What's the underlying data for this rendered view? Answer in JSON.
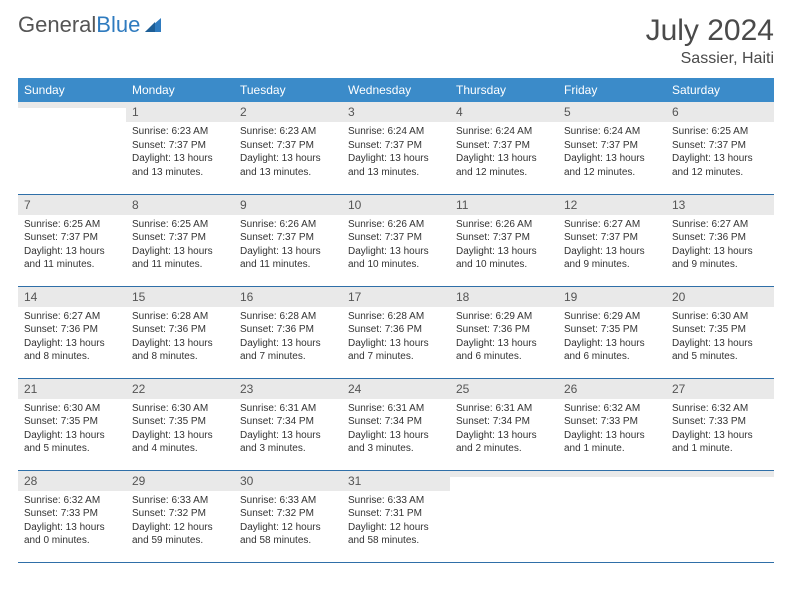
{
  "brand": {
    "part1": "General",
    "part2": "Blue"
  },
  "title": "July 2024",
  "location": "Sassier, Haiti",
  "colors": {
    "header_bg": "#3b8bc9",
    "header_text": "#ffffff",
    "row_divider": "#2f6fa8",
    "daynum_bg": "#e9e9e9",
    "brand_blue": "#2f7bbf",
    "text": "#333333"
  },
  "day_headers": [
    "Sunday",
    "Monday",
    "Tuesday",
    "Wednesday",
    "Thursday",
    "Friday",
    "Saturday"
  ],
  "weeks": [
    [
      {
        "n": "",
        "sr": "",
        "ss": "",
        "dl": ""
      },
      {
        "n": "1",
        "sr": "Sunrise: 6:23 AM",
        "ss": "Sunset: 7:37 PM",
        "dl": "Daylight: 13 hours and 13 minutes."
      },
      {
        "n": "2",
        "sr": "Sunrise: 6:23 AM",
        "ss": "Sunset: 7:37 PM",
        "dl": "Daylight: 13 hours and 13 minutes."
      },
      {
        "n": "3",
        "sr": "Sunrise: 6:24 AM",
        "ss": "Sunset: 7:37 PM",
        "dl": "Daylight: 13 hours and 13 minutes."
      },
      {
        "n": "4",
        "sr": "Sunrise: 6:24 AM",
        "ss": "Sunset: 7:37 PM",
        "dl": "Daylight: 13 hours and 12 minutes."
      },
      {
        "n": "5",
        "sr": "Sunrise: 6:24 AM",
        "ss": "Sunset: 7:37 PM",
        "dl": "Daylight: 13 hours and 12 minutes."
      },
      {
        "n": "6",
        "sr": "Sunrise: 6:25 AM",
        "ss": "Sunset: 7:37 PM",
        "dl": "Daylight: 13 hours and 12 minutes."
      }
    ],
    [
      {
        "n": "7",
        "sr": "Sunrise: 6:25 AM",
        "ss": "Sunset: 7:37 PM",
        "dl": "Daylight: 13 hours and 11 minutes."
      },
      {
        "n": "8",
        "sr": "Sunrise: 6:25 AM",
        "ss": "Sunset: 7:37 PM",
        "dl": "Daylight: 13 hours and 11 minutes."
      },
      {
        "n": "9",
        "sr": "Sunrise: 6:26 AM",
        "ss": "Sunset: 7:37 PM",
        "dl": "Daylight: 13 hours and 11 minutes."
      },
      {
        "n": "10",
        "sr": "Sunrise: 6:26 AM",
        "ss": "Sunset: 7:37 PM",
        "dl": "Daylight: 13 hours and 10 minutes."
      },
      {
        "n": "11",
        "sr": "Sunrise: 6:26 AM",
        "ss": "Sunset: 7:37 PM",
        "dl": "Daylight: 13 hours and 10 minutes."
      },
      {
        "n": "12",
        "sr": "Sunrise: 6:27 AM",
        "ss": "Sunset: 7:37 PM",
        "dl": "Daylight: 13 hours and 9 minutes."
      },
      {
        "n": "13",
        "sr": "Sunrise: 6:27 AM",
        "ss": "Sunset: 7:36 PM",
        "dl": "Daylight: 13 hours and 9 minutes."
      }
    ],
    [
      {
        "n": "14",
        "sr": "Sunrise: 6:27 AM",
        "ss": "Sunset: 7:36 PM",
        "dl": "Daylight: 13 hours and 8 minutes."
      },
      {
        "n": "15",
        "sr": "Sunrise: 6:28 AM",
        "ss": "Sunset: 7:36 PM",
        "dl": "Daylight: 13 hours and 8 minutes."
      },
      {
        "n": "16",
        "sr": "Sunrise: 6:28 AM",
        "ss": "Sunset: 7:36 PM",
        "dl": "Daylight: 13 hours and 7 minutes."
      },
      {
        "n": "17",
        "sr": "Sunrise: 6:28 AM",
        "ss": "Sunset: 7:36 PM",
        "dl": "Daylight: 13 hours and 7 minutes."
      },
      {
        "n": "18",
        "sr": "Sunrise: 6:29 AM",
        "ss": "Sunset: 7:36 PM",
        "dl": "Daylight: 13 hours and 6 minutes."
      },
      {
        "n": "19",
        "sr": "Sunrise: 6:29 AM",
        "ss": "Sunset: 7:35 PM",
        "dl": "Daylight: 13 hours and 6 minutes."
      },
      {
        "n": "20",
        "sr": "Sunrise: 6:30 AM",
        "ss": "Sunset: 7:35 PM",
        "dl": "Daylight: 13 hours and 5 minutes."
      }
    ],
    [
      {
        "n": "21",
        "sr": "Sunrise: 6:30 AM",
        "ss": "Sunset: 7:35 PM",
        "dl": "Daylight: 13 hours and 5 minutes."
      },
      {
        "n": "22",
        "sr": "Sunrise: 6:30 AM",
        "ss": "Sunset: 7:35 PM",
        "dl": "Daylight: 13 hours and 4 minutes."
      },
      {
        "n": "23",
        "sr": "Sunrise: 6:31 AM",
        "ss": "Sunset: 7:34 PM",
        "dl": "Daylight: 13 hours and 3 minutes."
      },
      {
        "n": "24",
        "sr": "Sunrise: 6:31 AM",
        "ss": "Sunset: 7:34 PM",
        "dl": "Daylight: 13 hours and 3 minutes."
      },
      {
        "n": "25",
        "sr": "Sunrise: 6:31 AM",
        "ss": "Sunset: 7:34 PM",
        "dl": "Daylight: 13 hours and 2 minutes."
      },
      {
        "n": "26",
        "sr": "Sunrise: 6:32 AM",
        "ss": "Sunset: 7:33 PM",
        "dl": "Daylight: 13 hours and 1 minute."
      },
      {
        "n": "27",
        "sr": "Sunrise: 6:32 AM",
        "ss": "Sunset: 7:33 PM",
        "dl": "Daylight: 13 hours and 1 minute."
      }
    ],
    [
      {
        "n": "28",
        "sr": "Sunrise: 6:32 AM",
        "ss": "Sunset: 7:33 PM",
        "dl": "Daylight: 13 hours and 0 minutes."
      },
      {
        "n": "29",
        "sr": "Sunrise: 6:33 AM",
        "ss": "Sunset: 7:32 PM",
        "dl": "Daylight: 12 hours and 59 minutes."
      },
      {
        "n": "30",
        "sr": "Sunrise: 6:33 AM",
        "ss": "Sunset: 7:32 PM",
        "dl": "Daylight: 12 hours and 58 minutes."
      },
      {
        "n": "31",
        "sr": "Sunrise: 6:33 AM",
        "ss": "Sunset: 7:31 PM",
        "dl": "Daylight: 12 hours and 58 minutes."
      },
      {
        "n": "",
        "sr": "",
        "ss": "",
        "dl": ""
      },
      {
        "n": "",
        "sr": "",
        "ss": "",
        "dl": ""
      },
      {
        "n": "",
        "sr": "",
        "ss": "",
        "dl": ""
      }
    ]
  ]
}
